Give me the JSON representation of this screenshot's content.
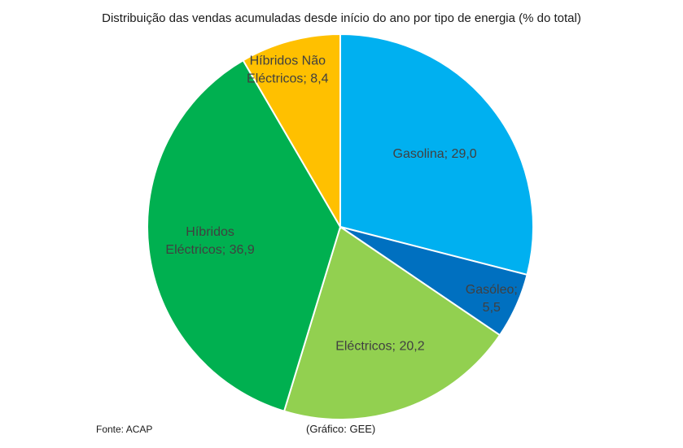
{
  "chart_data": {
    "type": "pie",
    "title": "Distribuição das vendas acumuladas desde início do ano por tipo de energia (% do total)",
    "slices": [
      {
        "name": "Gasolina",
        "label_lines": [
          "Gasolina; 29,0"
        ],
        "value": 29.0,
        "color": "#00b0f0"
      },
      {
        "name": "Gasóleo",
        "label_lines": [
          "Gasóleo;",
          "5,5"
        ],
        "value": 5.5,
        "color": "#0070c0"
      },
      {
        "name": "Eléctricos",
        "label_lines": [
          "Eléctricos; 20,2"
        ],
        "value": 20.2,
        "color": "#92d050"
      },
      {
        "name": "Híbridos Eléctricos",
        "label_lines": [
          "Híbridos",
          "Eléctricos; 36,9"
        ],
        "value": 36.9,
        "color": "#00b050"
      },
      {
        "name": "Híbridos Não Eléctricos",
        "label_lines": [
          "Híbridos Não",
          "Eléctricos; 8,4"
        ],
        "value": 8.4,
        "color": "#ffc000"
      }
    ],
    "start_angle": "12 o'clock",
    "direction": "clockwise"
  },
  "footer": {
    "source": "Fonte: ACAP",
    "credit": "(Gráfico: GEE)"
  }
}
